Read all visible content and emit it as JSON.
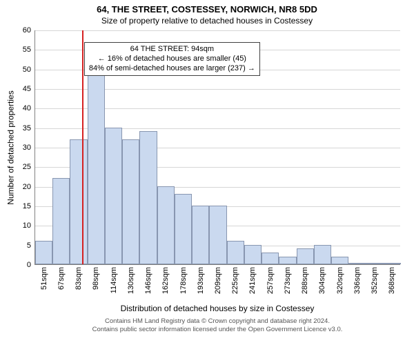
{
  "title_main": "64, THE STREET, COSTESSEY, NORWICH, NR8 5DD",
  "title_sub": "Size of property relative to detached houses in Costessey",
  "yaxis_label": "Number of detached properties",
  "xaxis_label": "Distribution of detached houses by size in Costessey",
  "footer_line1": "Contains HM Land Registry data © Crown copyright and database right 2024.",
  "footer_line2": "Contains public sector information licensed under the Open Government Licence v3.0.",
  "chart": {
    "type": "histogram",
    "ylim": [
      0,
      60
    ],
    "ytick_step": 5,
    "grid_color": "#d6d6d6",
    "axis_color": "#808080",
    "bar_fill": "#cad9ef",
    "bar_border": "#8896b0",
    "refline_color": "#d62020",
    "refline_x_index": 2.7,
    "xtick_labels": [
      "51sqm",
      "67sqm",
      "83sqm",
      "98sqm",
      "114sqm",
      "130sqm",
      "146sqm",
      "162sqm",
      "178sqm",
      "193sqm",
      "209sqm",
      "225sqm",
      "241sqm",
      "257sqm",
      "273sqm",
      "288sqm",
      "304sqm",
      "320sqm",
      "336sqm",
      "352sqm",
      "368sqm"
    ],
    "values": [
      6,
      22,
      32,
      50,
      35,
      32,
      34,
      20,
      18,
      15,
      15,
      6,
      5,
      3,
      2,
      4,
      5,
      2,
      0,
      0,
      0
    ],
    "annotation": {
      "line1": "64 THE STREET: 94sqm",
      "line2": "← 16% of detached houses are smaller (45)",
      "line3": "84% of semi-detached houses are larger (237) →",
      "top_value": 57,
      "left_index": 2.85
    }
  },
  "fonts": {
    "title_main_size": 13,
    "title_sub_size": 12,
    "tick_size": 11,
    "axis_label_size": 12,
    "footer_size": 9.5,
    "annotation_size": 11
  }
}
